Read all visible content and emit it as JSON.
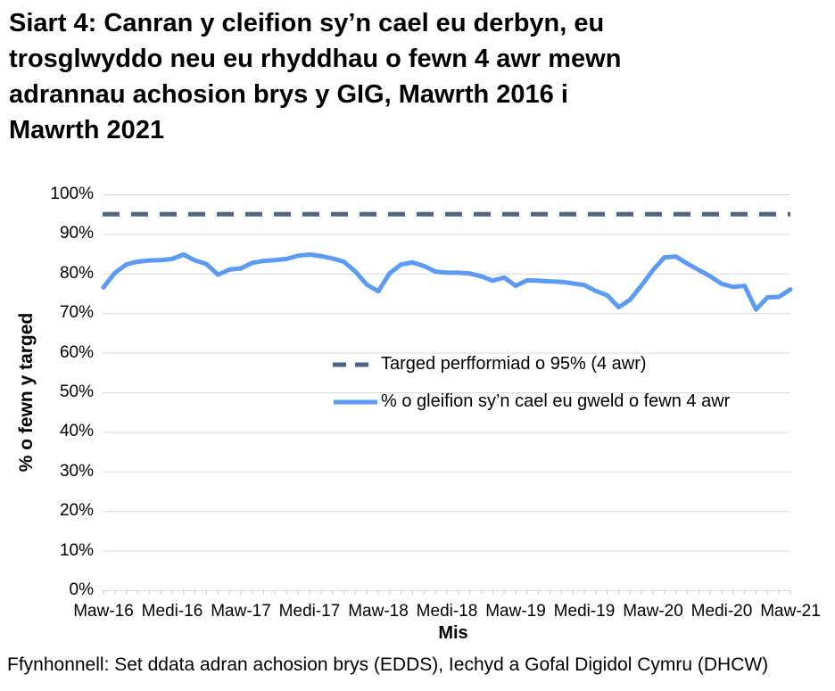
{
  "title_lines": [
    "Siart 4: Canran y cleifion sy’n cael eu derbyn, eu",
    "trosglwyddo neu eu rhyddhau o fewn 4 awr mewn",
    "adrannau achosion brys y GIG, Mawrth 2016 i",
    "Mawrth 2021"
  ],
  "footer": "Ffynhonnell: Set ddata adran achosion brys (EDDS), Iechyd a Gofal Digidol Cymru (DHCW)",
  "colors": {
    "target_line": "#4D6687",
    "data_line": "#5B9BF5",
    "gridline": "#D9D9D9",
    "tick": "#C9C9C9",
    "text": "#000000",
    "background": "#FFFFFF"
  },
  "chart_data": {
    "type": "line",
    "title": "Siart 4: Canran y cleifion sy’n cael eu derbyn, eu trosglwyddo neu eu rhyddhau o fewn 4 awr mewn adrannau achosion brys y GIG, Mawrth 2016 i Mawrth 2021",
    "xlabel": "Mis",
    "ylabel": "% o fewn y targed",
    "x_range": "Mawrth 2016 i Mawrth 2021 (misol, 61 pwynt)",
    "x_tick_labels": [
      "Maw-16",
      "Medi-16",
      "Maw-17",
      "Medi-17",
      "Maw-18",
      "Medi-18",
      "Maw-19",
      "Medi-19",
      "Maw-20",
      "Medi-20",
      "Maw-21"
    ],
    "x_tick_month_index": [
      0,
      6,
      12,
      18,
      24,
      30,
      36,
      42,
      48,
      54,
      60
    ],
    "y_tick_labels": [
      "100%",
      "90%",
      "80%",
      "70%",
      "60%",
      "50%",
      "40%",
      "30%",
      "20%",
      "10%",
      "0%"
    ],
    "ylim": [
      0,
      100
    ],
    "grid": true,
    "legend_position": "inside-middle-right",
    "target_value": 95,
    "series": [
      {
        "name": "Targed perfformiad o 95% (4 awr)",
        "style": "dashed",
        "color": "#4D6687",
        "constant_value": 95
      },
      {
        "name": "% o gleifion sy’n cael eu gweld o fewn 4 awr",
        "style": "solid",
        "color": "#5B9BF5",
        "values": [
          76.5,
          80.2,
          82.3,
          83.0,
          83.3,
          83.4,
          83.7,
          84.8,
          83.3,
          82.4,
          79.7,
          81.0,
          81.3,
          82.7,
          83.2,
          83.4,
          83.7,
          84.5,
          84.8,
          84.4,
          83.8,
          83.0,
          80.5,
          77.2,
          75.5,
          80.1,
          82.3,
          82.8,
          81.9,
          80.5,
          80.2,
          80.2,
          80.0,
          79.3,
          78.2,
          79.0,
          76.9,
          78.3,
          78.2,
          78.0,
          77.9,
          77.5,
          77.1,
          75.6,
          74.5,
          71.5,
          73.4,
          77.0,
          80.9,
          84.1,
          84.3,
          82.5,
          80.9,
          79.3,
          77.4,
          76.6,
          76.9,
          70.9,
          74.0,
          74.1,
          76.0
        ]
      }
    ]
  }
}
